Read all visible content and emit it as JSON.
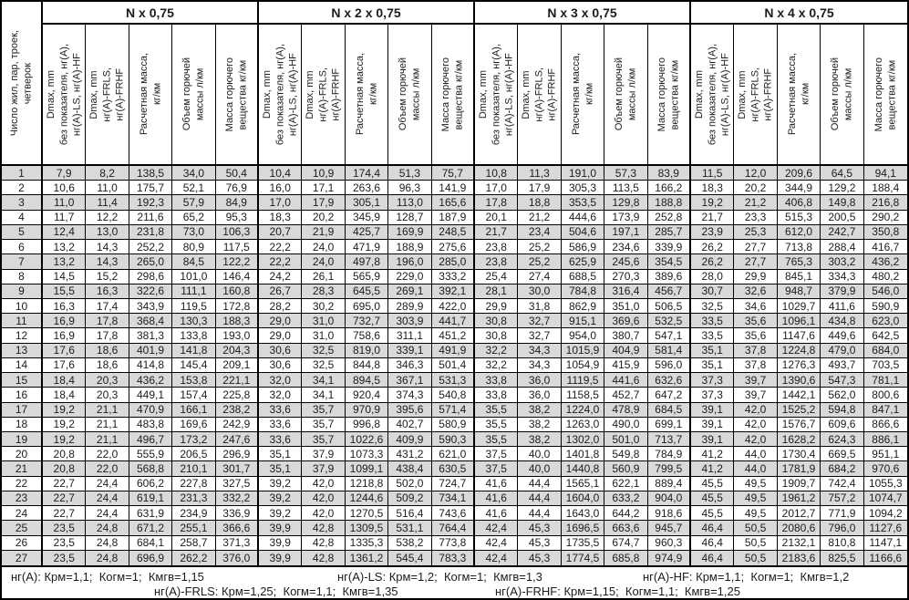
{
  "table": {
    "corner_header": "Число жил, пар, троек,\nчетверок",
    "groups": [
      {
        "title": "N x 0,75"
      },
      {
        "title": "N x 2 x 0,75"
      },
      {
        "title": "N x 3 x 0,75"
      },
      {
        "title": "N x 4 x 0,75"
      }
    ],
    "sub_headers": [
      "Dmax, mm\nбез показателя, нг(А),\nнг(А)-LS, нг(А)-HF",
      "Dmax, mm\nнг(А)-FRLS,\nнг(А)-FRHF",
      "Расчетная масса,\nкг/км",
      "Объем горючей\nмассы л/км",
      "Масса горючего\nвещества кг/км"
    ],
    "rows": [
      {
        "n": "1",
        "cells": [
          "7,9",
          "8,2",
          "138,5",
          "34,0",
          "50,4",
          "10,4",
          "10,9",
          "174,4",
          "51,3",
          "75,7",
          "10,8",
          "11,3",
          "191,0",
          "57,3",
          "83,9",
          "11,5",
          "12,0",
          "209,6",
          "64,5",
          "94,1"
        ]
      },
      {
        "n": "2",
        "cells": [
          "10,6",
          "11,0",
          "175,7",
          "52,1",
          "76,9",
          "16,0",
          "17,1",
          "263,6",
          "96,3",
          "141,9",
          "17,0",
          "17,9",
          "305,3",
          "113,5",
          "166,2",
          "18,3",
          "20,2",
          "344,9",
          "129,2",
          "188,4"
        ]
      },
      {
        "n": "3",
        "cells": [
          "11,0",
          "11,4",
          "192,3",
          "57,9",
          "84,9",
          "17,0",
          "17,9",
          "305,1",
          "113,0",
          "165,6",
          "17,8",
          "18,8",
          "353,5",
          "129,8",
          "188,8",
          "19,2",
          "21,2",
          "406,8",
          "149,8",
          "216,8"
        ]
      },
      {
        "n": "4",
        "cells": [
          "11,7",
          "12,2",
          "211,6",
          "65,2",
          "95,3",
          "18,3",
          "20,2",
          "345,9",
          "128,7",
          "187,9",
          "20,1",
          "21,2",
          "444,6",
          "173,9",
          "252,8",
          "21,7",
          "23,3",
          "515,3",
          "200,5",
          "290,2"
        ]
      },
      {
        "n": "5",
        "cells": [
          "12,4",
          "13,0",
          "231,8",
          "73,0",
          "106,3",
          "20,7",
          "21,9",
          "425,7",
          "169,9",
          "248,5",
          "21,7",
          "23,4",
          "504,6",
          "197,1",
          "285,7",
          "23,9",
          "25,3",
          "612,0",
          "242,7",
          "350,8"
        ]
      },
      {
        "n": "6",
        "cells": [
          "13,2",
          "14,3",
          "252,2",
          "80,9",
          "117,5",
          "22,2",
          "24,0",
          "471,9",
          "188,9",
          "275,6",
          "23,8",
          "25,2",
          "586,9",
          "234,6",
          "339,9",
          "26,2",
          "27,7",
          "713,8",
          "288,4",
          "416,7"
        ]
      },
      {
        "n": "7",
        "cells": [
          "13,2",
          "14,3",
          "265,0",
          "84,5",
          "122,2",
          "22,2",
          "24,0",
          "497,8",
          "196,0",
          "285,0",
          "23,8",
          "25,2",
          "625,9",
          "245,6",
          "354,5",
          "26,2",
          "27,7",
          "765,3",
          "303,2",
          "436,2"
        ]
      },
      {
        "n": "8",
        "cells": [
          "14,5",
          "15,2",
          "298,6",
          "101,0",
          "146,4",
          "24,2",
          "26,1",
          "565,9",
          "229,0",
          "333,2",
          "25,4",
          "27,4",
          "688,5",
          "270,3",
          "389,6",
          "28,0",
          "29,9",
          "845,1",
          "334,3",
          "480,2"
        ]
      },
      {
        "n": "9",
        "cells": [
          "15,5",
          "16,3",
          "322,6",
          "111,1",
          "160,8",
          "26,7",
          "28,3",
          "645,5",
          "269,1",
          "392,1",
          "28,1",
          "30,0",
          "784,8",
          "316,4",
          "456,7",
          "30,7",
          "32,6",
          "948,7",
          "379,9",
          "546,0"
        ]
      },
      {
        "n": "10",
        "cells": [
          "16,3",
          "17,4",
          "343,9",
          "119,5",
          "172,8",
          "28,2",
          "30,2",
          "695,0",
          "289,9",
          "422,0",
          "29,9",
          "31,8",
          "862,9",
          "351,0",
          "506,5",
          "32,5",
          "34,6",
          "1029,7",
          "411,6",
          "590,9"
        ]
      },
      {
        "n": "11",
        "cells": [
          "16,9",
          "17,8",
          "368,4",
          "130,3",
          "188,3",
          "29,0",
          "31,0",
          "732,7",
          "303,9",
          "441,7",
          "30,8",
          "32,7",
          "915,1",
          "369,6",
          "532,5",
          "33,5",
          "35,6",
          "1096,1",
          "434,8",
          "623,0"
        ]
      },
      {
        "n": "12",
        "cells": [
          "16,9",
          "17,8",
          "381,3",
          "133,8",
          "193,0",
          "29,0",
          "31,0",
          "758,6",
          "311,1",
          "451,2",
          "30,8",
          "32,7",
          "954,0",
          "380,7",
          "547,1",
          "33,5",
          "35,6",
          "1147,6",
          "449,6",
          "642,5"
        ]
      },
      {
        "n": "13",
        "cells": [
          "17,6",
          "18,6",
          "401,9",
          "141,8",
          "204,3",
          "30,6",
          "32,5",
          "819,0",
          "339,1",
          "491,9",
          "32,2",
          "34,3",
          "1015,9",
          "404,9",
          "581,4",
          "35,1",
          "37,8",
          "1224,8",
          "479,0",
          "684,0"
        ]
      },
      {
        "n": "14",
        "cells": [
          "17,6",
          "18,6",
          "414,8",
          "145,4",
          "209,1",
          "30,6",
          "32,5",
          "844,8",
          "346,3",
          "501,4",
          "32,2",
          "34,3",
          "1054,9",
          "415,9",
          "596,0",
          "35,1",
          "37,8",
          "1276,3",
          "493,7",
          "703,5"
        ]
      },
      {
        "n": "15",
        "cells": [
          "18,4",
          "20,3",
          "436,2",
          "153,8",
          "221,1",
          "32,0",
          "34,1",
          "894,5",
          "367,1",
          "531,3",
          "33,8",
          "36,0",
          "1119,5",
          "441,6",
          "632,6",
          "37,3",
          "39,7",
          "1390,6",
          "547,3",
          "781,1"
        ]
      },
      {
        "n": "16",
        "cells": [
          "18,4",
          "20,3",
          "449,1",
          "157,4",
          "225,8",
          "32,0",
          "34,1",
          "920,4",
          "374,3",
          "540,8",
          "33,8",
          "36,0",
          "1158,5",
          "452,7",
          "647,2",
          "37,3",
          "39,7",
          "1442,1",
          "562,0",
          "800,6"
        ]
      },
      {
        "n": "17",
        "cells": [
          "19,2",
          "21,1",
          "470,9",
          "166,1",
          "238,2",
          "33,6",
          "35,7",
          "970,9",
          "395,6",
          "571,4",
          "35,5",
          "38,2",
          "1224,0",
          "478,9",
          "684,5",
          "39,1",
          "42,0",
          "1525,2",
          "594,8",
          "847,1"
        ]
      },
      {
        "n": "18",
        "cells": [
          "19,2",
          "21,1",
          "483,8",
          "169,6",
          "242,9",
          "33,6",
          "35,7",
          "996,8",
          "402,7",
          "580,9",
          "35,5",
          "38,2",
          "1263,0",
          "490,0",
          "699,1",
          "39,1",
          "42,0",
          "1576,7",
          "609,6",
          "866,6"
        ]
      },
      {
        "n": "19",
        "cells": [
          "19,2",
          "21,1",
          "496,7",
          "173,2",
          "247,6",
          "33,6",
          "35,7",
          "1022,6",
          "409,9",
          "590,3",
          "35,5",
          "38,2",
          "1302,0",
          "501,0",
          "713,7",
          "39,1",
          "42,0",
          "1628,2",
          "624,3",
          "886,1"
        ]
      },
      {
        "n": "20",
        "cells": [
          "20,8",
          "22,0",
          "555,9",
          "206,5",
          "296,9",
          "35,1",
          "37,9",
          "1073,3",
          "431,2",
          "621,0",
          "37,5",
          "40,0",
          "1401,8",
          "549,8",
          "784,9",
          "41,2",
          "44,0",
          "1730,4",
          "669,5",
          "951,1"
        ]
      },
      {
        "n": "21",
        "cells": [
          "20,8",
          "22,0",
          "568,8",
          "210,1",
          "301,7",
          "35,1",
          "37,9",
          "1099,1",
          "438,4",
          "630,5",
          "37,5",
          "40,0",
          "1440,8",
          "560,9",
          "799,5",
          "41,2",
          "44,0",
          "1781,9",
          "684,2",
          "970,6"
        ]
      },
      {
        "n": "22",
        "cells": [
          "22,7",
          "24,4",
          "606,2",
          "227,8",
          "327,5",
          "39,2",
          "42,0",
          "1218,8",
          "502,0",
          "724,7",
          "41,6",
          "44,4",
          "1565,1",
          "622,1",
          "889,4",
          "45,5",
          "49,5",
          "1909,7",
          "742,4",
          "1055,3"
        ]
      },
      {
        "n": "23",
        "cells": [
          "22,7",
          "24,4",
          "619,1",
          "231,3",
          "332,2",
          "39,2",
          "42,0",
          "1244,6",
          "509,2",
          "734,1",
          "41,6",
          "44,4",
          "1604,0",
          "633,2",
          "904,0",
          "45,5",
          "49,5",
          "1961,2",
          "757,2",
          "1074,7"
        ]
      },
      {
        "n": "24",
        "cells": [
          "22,7",
          "24,4",
          "631,9",
          "234,9",
          "336,9",
          "39,2",
          "42,0",
          "1270,5",
          "516,4",
          "743,6",
          "41,6",
          "44,4",
          "1643,0",
          "644,2",
          "918,6",
          "45,5",
          "49,5",
          "2012,7",
          "771,9",
          "1094,2"
        ]
      },
      {
        "n": "25",
        "cells": [
          "23,5",
          "24,8",
          "671,2",
          "255,1",
          "366,6",
          "39,9",
          "42,8",
          "1309,5",
          "531,1",
          "764,4",
          "42,4",
          "45,3",
          "1696,5",
          "663,6",
          "945,7",
          "46,4",
          "50,5",
          "2080,6",
          "796,0",
          "1127,6"
        ]
      },
      {
        "n": "26",
        "cells": [
          "23,5",
          "24,8",
          "684,1",
          "258,7",
          "371,3",
          "39,9",
          "42,8",
          "1335,3",
          "538,2",
          "773,8",
          "42,4",
          "45,3",
          "1735,5",
          "674,7",
          "960,3",
          "46,4",
          "50,5",
          "2132,1",
          "810,8",
          "1147,1"
        ]
      },
      {
        "n": "27",
        "cells": [
          "23,5",
          "24,8",
          "696,9",
          "262,2",
          "376,0",
          "39,9",
          "42,8",
          "1361,2",
          "545,4",
          "783,3",
          "42,4",
          "45,3",
          "1774,5",
          "685,8",
          "974,9",
          "46,4",
          "50,5",
          "2183,6",
          "825,5",
          "1166,6"
        ]
      }
    ]
  },
  "footnotes": {
    "line1_left": "нг(А): Крм=1,1;  Когм=1;  Кмгв=1,15",
    "line1_mid": "нг(А)-LS: Крм=1,2;  Когм=1;  Кмгв=1,3",
    "line1_right": "нг(А)-HF: Крм=1,1;  Когм=1;  Кмгв=1,2",
    "line2_left": "нг(А)-FRLS: Крм=1,25;  Когм=1,1;  Кмгв=1,35",
    "line2_right": "нг(А)-FRHF: Крм=1,15;  Когм=1,1;  Кмгв=1,25"
  },
  "colors": {
    "border": "#000000",
    "row_shaded": "#d9d9d9",
    "background": "#ffffff"
  }
}
